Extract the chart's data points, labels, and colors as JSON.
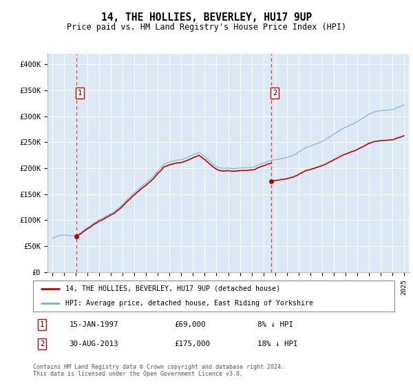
{
  "title": "14, THE HOLLIES, BEVERLEY, HU17 9UP",
  "subtitle": "Price paid vs. HM Land Registry's House Price Index (HPI)",
  "legend_line1": "14, THE HOLLIES, BEVERLEY, HU17 9UP (detached house)",
  "legend_line2": "HPI: Average price, detached house, East Riding of Yorkshire",
  "annotation1_date": "15-JAN-1997",
  "annotation1_price": "£69,000",
  "annotation1_hpi": "8% ↓ HPI",
  "annotation2_date": "30-AUG-2013",
  "annotation2_price": "£175,000",
  "annotation2_hpi": "18% ↓ HPI",
  "footer": "Contains HM Land Registry data © Crown copyright and database right 2024.\nThis data is licensed under the Open Government Licence v3.0.",
  "line_color_red": "#bb0000",
  "line_color_blue": "#7ab0d4",
  "plot_bg_color": "#dce9f5",
  "ylim": [
    0,
    420000
  ],
  "yticks": [
    0,
    50000,
    100000,
    150000,
    200000,
    250000,
    300000,
    350000,
    400000
  ],
  "ytick_labels": [
    "£0",
    "£50K",
    "£100K",
    "£150K",
    "£200K",
    "£250K",
    "£300K",
    "£350K",
    "£400K"
  ],
  "sale1_year": 1997.04,
  "sale1_price": 69000,
  "sale2_year": 2013.67,
  "sale2_price": 175000
}
